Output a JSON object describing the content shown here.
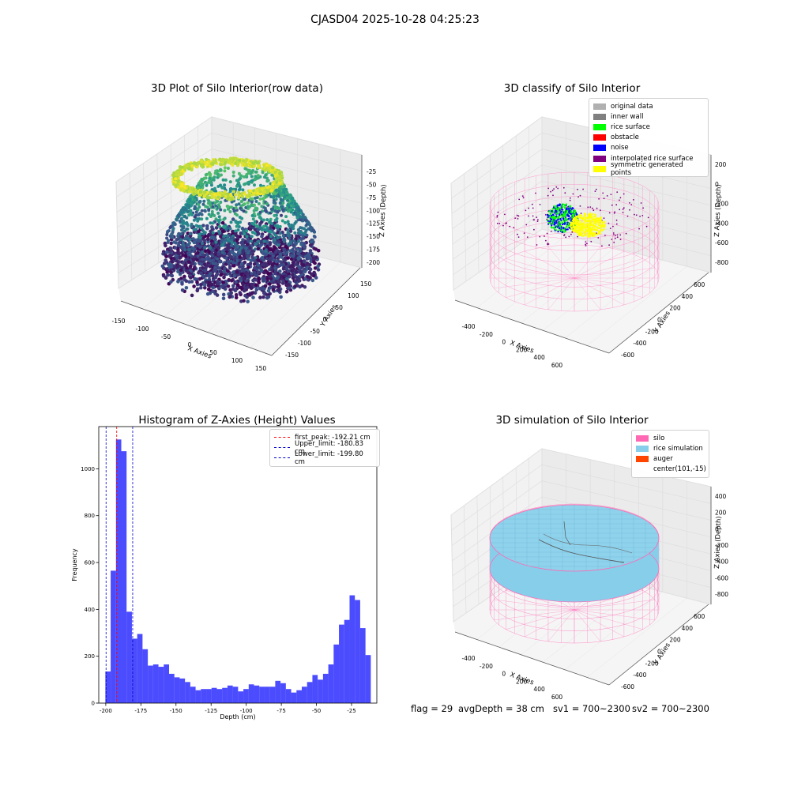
{
  "figure_title": "CJASD04 2025-10-28 04:25:23",
  "footer": {
    "flag": "flag = 29",
    "avg_depth": "avgDepth = 38 cm",
    "sv1": "sv1 = 700~2300",
    "sv2": "sv2 = 700~2300"
  },
  "chart_data": [
    {
      "type": "scatter",
      "title": "3D Plot of Silo Interior(row data)",
      "xlabel": "X Axies",
      "ylabel": "Y Axies",
      "zlabel": "Z Axies (Depth)",
      "xticks": [
        "-150",
        "-100",
        "-50",
        "0",
        "50",
        "100",
        "150"
      ],
      "yticks": [
        "-150",
        "-100",
        "-50",
        "0",
        "50",
        "100",
        "150"
      ],
      "zticks": [
        "-25",
        "-50",
        "-75",
        "-100",
        "-125",
        "-150",
        "-175",
        "-200"
      ],
      "xlim": [
        -160,
        160
      ],
      "ylim": [
        -160,
        160
      ],
      "zlim": [
        -210,
        -10
      ],
      "colormap": "viridis"
    },
    {
      "type": "scatter",
      "title": "3D classify of Silo Interior",
      "xlabel": "X Axies",
      "ylabel": "Y Axies",
      "zlabel": "Z Axies (Depth)",
      "xticks": [
        "-400",
        "-200",
        "0",
        "200",
        "400",
        "600"
      ],
      "yticks": [
        "-600",
        "-400",
        "-200",
        "0",
        "200",
        "400",
        "600"
      ],
      "zticks": [
        "200",
        "0",
        "-200",
        "-400",
        "-600",
        "-800"
      ],
      "legend_position": "top-right",
      "legend": [
        {
          "label": "original data",
          "color": "#b0b0b0"
        },
        {
          "label": "inner wall",
          "color": "#808080"
        },
        {
          "label": "rice surface",
          "color": "#00ff00"
        },
        {
          "label": "obstacle",
          "color": "#ff0000"
        },
        {
          "label": "noise",
          "color": "#0000ff"
        },
        {
          "label": "interpolated rice surface",
          "color": "#800080"
        },
        {
          "label": "symmetric generated points",
          "color": "#ffff00"
        }
      ]
    },
    {
      "type": "bar",
      "title": "Histogram of Z-Axies (Height) Values",
      "xlabel": "Depth (cm)",
      "ylabel": "Frequency",
      "xlim": [
        -205,
        -7
      ],
      "ylim": [
        0,
        1180
      ],
      "xticks": [
        -200,
        -175,
        -150,
        -125,
        -100,
        -75,
        -50,
        -25
      ],
      "yticks": [
        0,
        200,
        400,
        600,
        800,
        1000
      ],
      "bar_color": "#0000ff",
      "bin_start": -200.3,
      "bin_width": 3.78,
      "values": [
        135,
        565,
        1125,
        1075,
        390,
        275,
        295,
        230,
        160,
        165,
        155,
        165,
        125,
        110,
        105,
        90,
        70,
        55,
        60,
        60,
        65,
        60,
        65,
        75,
        70,
        50,
        60,
        80,
        75,
        70,
        70,
        70,
        95,
        85,
        60,
        45,
        55,
        70,
        90,
        120,
        100,
        125,
        165,
        250,
        335,
        355,
        460,
        440,
        320,
        205
      ],
      "legend_position": "top-right",
      "vlines": [
        {
          "label": "first_peak: -192.21 cm",
          "x": -192.21,
          "color": "#ff0000"
        },
        {
          "label": "Upper_limit: -180.83 cm",
          "x": -180.83,
          "color": "#0000cc"
        },
        {
          "label": "Lower_limit: -199.80 cm",
          "x": -199.8,
          "color": "#0000cc"
        }
      ]
    },
    {
      "type": "area",
      "title": "3D simulation of Silo Interior",
      "xlabel": "X Axies",
      "ylabel": "Y Axies",
      "zlabel": "Z Axies (Depth)",
      "xticks": [
        "-400",
        "-200",
        "0",
        "200",
        "400",
        "600"
      ],
      "yticks": [
        "-600",
        "-400",
        "-200",
        "0",
        "200",
        "400",
        "600"
      ],
      "zticks": [
        "400",
        "200",
        "0",
        "-200",
        "-400",
        "-600",
        "-800"
      ],
      "legend_position": "top-right",
      "legend": [
        {
          "label": "silo",
          "color": "#ff69b4"
        },
        {
          "label": "rice simulation",
          "color": "#87ceeb"
        },
        {
          "label": "auger",
          "color": "#ff4500"
        },
        {
          "label": "center(101,-15)",
          "color": ""
        }
      ]
    }
  ]
}
